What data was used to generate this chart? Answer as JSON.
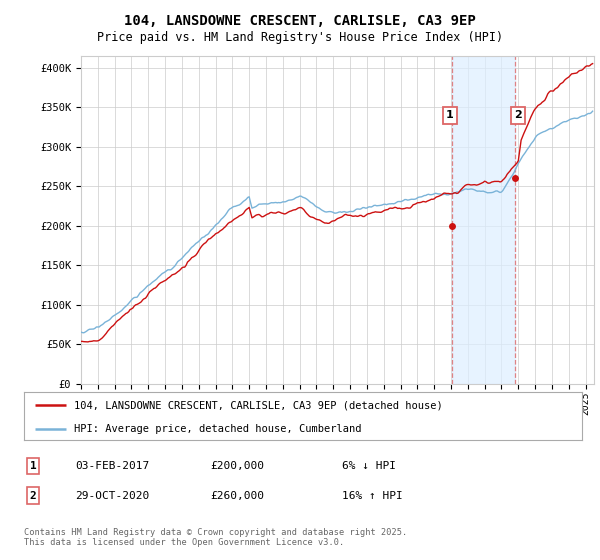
{
  "title": "104, LANSDOWNE CRESCENT, CARLISLE, CA3 9EP",
  "subtitle": "Price paid vs. HM Land Registry's House Price Index (HPI)",
  "ylabel_ticks": [
    "£0",
    "£50K",
    "£100K",
    "£150K",
    "£200K",
    "£250K",
    "£300K",
    "£350K",
    "£400K"
  ],
  "ytick_vals": [
    0,
    50000,
    100000,
    150000,
    200000,
    250000,
    300000,
    350000,
    400000
  ],
  "ylim": [
    0,
    415000
  ],
  "xlim_start": 1995.0,
  "xlim_end": 2025.5,
  "hpi_color": "#7ab3d8",
  "price_color": "#cc1111",
  "sale1_date": 2017.08,
  "sale1_price": 200000,
  "sale2_date": 2020.83,
  "sale2_price": 260000,
  "vline_color": "#dd6666",
  "vline_shade_color": "#ddeeff",
  "legend_line1": "104, LANSDOWNE CRESCENT, CARLISLE, CA3 9EP (detached house)",
  "legend_line2": "HPI: Average price, detached house, Cumberland",
  "annotation1_num": "1",
  "annotation1_date": "03-FEB-2017",
  "annotation1_price": "£200,000",
  "annotation1_pct": "6% ↓ HPI",
  "annotation2_num": "2",
  "annotation2_date": "29-OCT-2020",
  "annotation2_price": "£260,000",
  "annotation2_pct": "16% ↑ HPI",
  "footer": "Contains HM Land Registry data © Crown copyright and database right 2025.\nThis data is licensed under the Open Government Licence v3.0.",
  "bg_color": "#ffffff",
  "grid_color": "#cccccc"
}
